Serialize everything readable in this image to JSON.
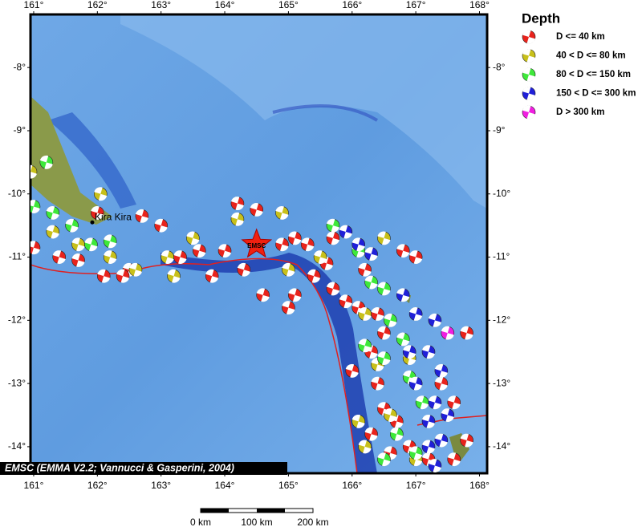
{
  "map": {
    "xlim": [
      160.95,
      168.12
    ],
    "ylim": [
      -14.42,
      -7.16
    ],
    "xticks": [
      {
        "value": 161,
        "label": "161°"
      },
      {
        "value": 162,
        "label": "162°"
      },
      {
        "value": 163,
        "label": "163°"
      },
      {
        "value": 164,
        "label": "164°"
      },
      {
        "value": 165,
        "label": "165°"
      },
      {
        "value": 166,
        "label": "166°"
      },
      {
        "value": 167,
        "label": "167°"
      },
      {
        "value": 168,
        "label": "168°"
      }
    ],
    "yticks": [
      {
        "value": -8,
        "label": "-8°"
      },
      {
        "value": -9,
        "label": "-9°"
      },
      {
        "value": -10,
        "label": "-10°"
      },
      {
        "value": -11,
        "label": "-11°"
      },
      {
        "value": -12,
        "label": "-12°"
      },
      {
        "value": -13,
        "label": "-13°"
      },
      {
        "value": -14,
        "label": "-14°"
      }
    ],
    "legend": {
      "title": "Depth",
      "items": [
        {
          "label": "D <= 40 km",
          "color": "#e8231c"
        },
        {
          "label": "40 < D <= 80 km",
          "color": "#c8c01a"
        },
        {
          "label": "80 < D <= 150 km",
          "color": "#3ee83a"
        },
        {
          "label": "150 < D <= 300 km",
          "color": "#2020d8"
        },
        {
          "label": "D > 300 km",
          "color": "#f01ee0"
        }
      ]
    },
    "events": [
      [
        161.0,
        -10.85,
        0
      ],
      [
        161.4,
        -11.0,
        0
      ],
      [
        161.7,
        -11.05,
        0
      ],
      [
        162.1,
        -11.3,
        0
      ],
      [
        162.5,
        -11.2,
        0
      ],
      [
        162.0,
        -10.3,
        0
      ],
      [
        162.7,
        -10.35,
        0
      ],
      [
        163.0,
        -10.5,
        0
      ],
      [
        163.3,
        -11.0,
        0
      ],
      [
        163.6,
        -10.9,
        0
      ],
      [
        163.8,
        -11.3,
        0
      ],
      [
        164.2,
        -10.15,
        0
      ],
      [
        164.0,
        -10.9,
        0
      ],
      [
        164.3,
        -11.2,
        0
      ],
      [
        164.5,
        -10.25,
        0
      ],
      [
        164.9,
        -10.8,
        0
      ],
      [
        165.1,
        -10.7,
        0
      ],
      [
        165.3,
        -10.8,
        0
      ],
      [
        165.6,
        -11.1,
        0
      ],
      [
        165.4,
        -11.3,
        0
      ],
      [
        165.7,
        -11.5,
        0
      ],
      [
        165.1,
        -11.6,
        0
      ],
      [
        164.6,
        -11.6,
        0
      ],
      [
        165.0,
        -11.8,
        0
      ],
      [
        165.9,
        -11.7,
        0
      ],
      [
        166.1,
        -11.8,
        0
      ],
      [
        166.4,
        -11.9,
        0
      ],
      [
        166.5,
        -12.2,
        0
      ],
      [
        166.3,
        -12.5,
        0
      ],
      [
        166.0,
        -12.8,
        0
      ],
      [
        166.4,
        -13.0,
        0
      ],
      [
        166.5,
        -13.4,
        0
      ],
      [
        166.7,
        -13.6,
        0
      ],
      [
        166.3,
        -13.8,
        0
      ],
      [
        166.6,
        -14.1,
        0
      ],
      [
        166.9,
        -14.0,
        0
      ],
      [
        167.2,
        -14.2,
        0
      ],
      [
        167.6,
        -14.2,
        0
      ],
      [
        167.8,
        -13.9,
        0
      ],
      [
        167.6,
        -13.3,
        0
      ],
      [
        167.8,
        -12.2,
        0
      ],
      [
        167.4,
        -13.0,
        0
      ],
      [
        166.8,
        -10.9,
        0
      ],
      [
        167.0,
        -11.0,
        0
      ],
      [
        166.2,
        -11.2,
        0
      ],
      [
        165.7,
        -10.7,
        0
      ],
      [
        162.4,
        -11.3,
        0
      ],
      [
        160.95,
        -9.65,
        1
      ],
      [
        162.05,
        -10.0,
        1
      ],
      [
        161.3,
        -10.6,
        1
      ],
      [
        161.7,
        -10.8,
        1
      ],
      [
        162.2,
        -11.0,
        1
      ],
      [
        162.6,
        -11.2,
        1
      ],
      [
        163.1,
        -11.0,
        1
      ],
      [
        163.2,
        -11.3,
        1
      ],
      [
        163.5,
        -10.7,
        1
      ],
      [
        164.2,
        -10.4,
        1
      ],
      [
        164.9,
        -10.3,
        1
      ],
      [
        165.0,
        -11.2,
        1
      ],
      [
        165.5,
        -11.0,
        1
      ],
      [
        166.5,
        -10.7,
        1
      ],
      [
        166.2,
        -11.9,
        1
      ],
      [
        166.4,
        -12.7,
        1
      ],
      [
        166.9,
        -12.6,
        1
      ],
      [
        166.1,
        -13.6,
        1
      ],
      [
        166.6,
        -13.5,
        1
      ],
      [
        166.2,
        -14.0,
        1
      ],
      [
        167.0,
        -14.2,
        1
      ],
      [
        161.2,
        -9.5,
        2
      ],
      [
        161.0,
        -10.2,
        2
      ],
      [
        161.3,
        -10.3,
        2
      ],
      [
        161.6,
        -10.5,
        2
      ],
      [
        161.9,
        -10.8,
        2
      ],
      [
        162.2,
        -10.75,
        2
      ],
      [
        165.7,
        -10.5,
        2
      ],
      [
        166.1,
        -10.9,
        2
      ],
      [
        166.3,
        -11.4,
        2
      ],
      [
        166.5,
        -11.5,
        2
      ],
      [
        166.6,
        -12.0,
        2
      ],
      [
        166.8,
        -12.3,
        2
      ],
      [
        166.5,
        -12.6,
        2
      ],
      [
        166.9,
        -12.9,
        2
      ],
      [
        166.2,
        -12.4,
        2
      ],
      [
        167.1,
        -13.3,
        2
      ],
      [
        166.7,
        -13.8,
        2
      ],
      [
        166.5,
        -14.2,
        2
      ],
      [
        167.0,
        -14.1,
        2
      ],
      [
        165.9,
        -10.6,
        3
      ],
      [
        166.1,
        -10.8,
        3
      ],
      [
        166.3,
        -10.95,
        3
      ],
      [
        166.8,
        -11.6,
        3
      ],
      [
        167.0,
        -11.9,
        3
      ],
      [
        167.3,
        -12.0,
        3
      ],
      [
        167.2,
        -12.5,
        3
      ],
      [
        166.9,
        -12.5,
        3
      ],
      [
        167.4,
        -12.8,
        3
      ],
      [
        167.0,
        -13.0,
        3
      ],
      [
        167.3,
        -13.3,
        3
      ],
      [
        167.5,
        -13.5,
        3
      ],
      [
        167.2,
        -13.6,
        3
      ],
      [
        167.4,
        -13.9,
        3
      ],
      [
        167.2,
        -14.0,
        3
      ],
      [
        167.3,
        -14.3,
        3
      ],
      [
        167.5,
        -12.2,
        4
      ]
    ],
    "place": {
      "name": "Kira Kira",
      "lon": 161.92,
      "lat": -10.45
    },
    "epicenter": {
      "label": "EMSC",
      "lon": 164.5,
      "lat": -10.8
    },
    "credit": "EMSC (EMMA V2.2; Vannucci & Gasperini, 2004)",
    "scale_bar": {
      "labels": [
        "0 km",
        "100 km",
        "200 km"
      ]
    }
  }
}
